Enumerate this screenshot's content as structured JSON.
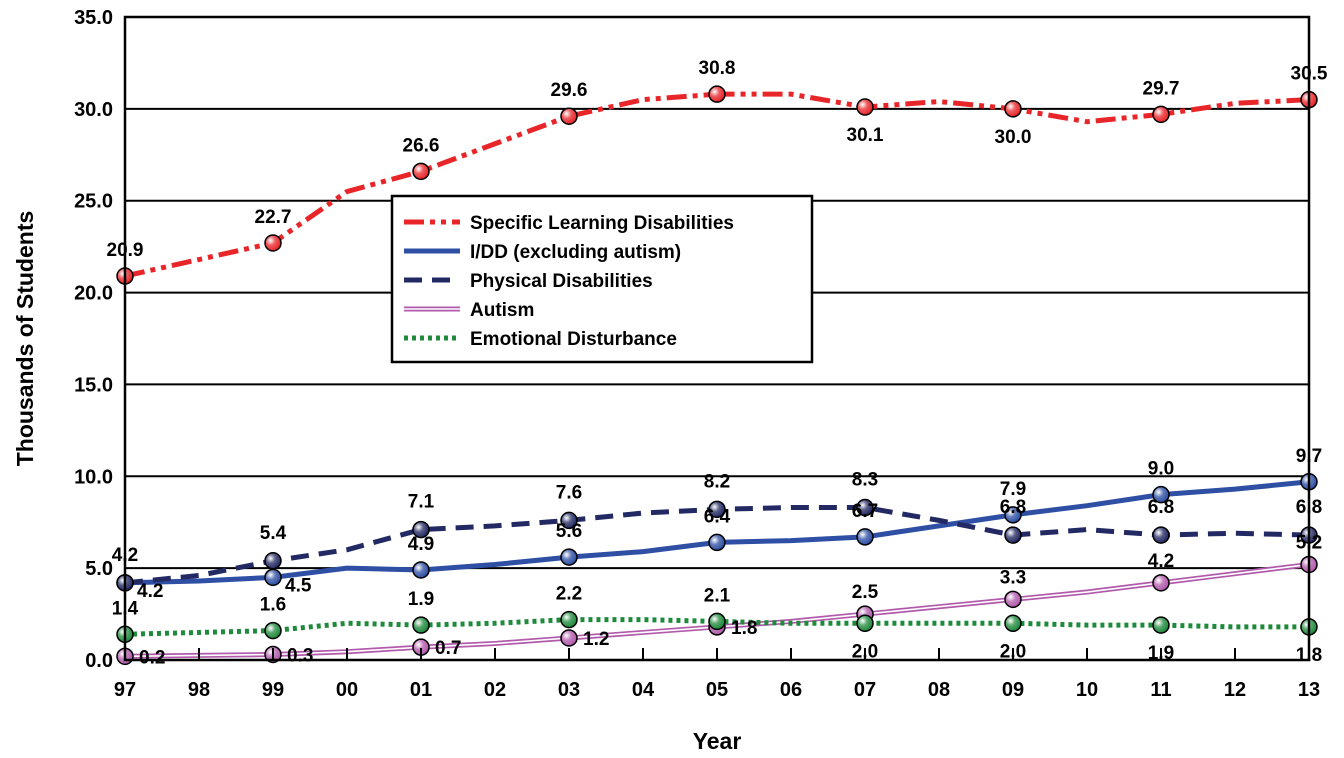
{
  "chart_data": {
    "type": "line",
    "xlabel": "Year",
    "ylabel": "Thousands of Students",
    "ylim": [
      0,
      35
    ],
    "yticks": [
      "0.0",
      "5.0",
      "10.0",
      "15.0",
      "20.0",
      "25.0",
      "30.0",
      "35.0"
    ],
    "categories": [
      "97",
      "98",
      "99",
      "00",
      "01",
      "02",
      "03",
      "04",
      "05",
      "06",
      "07",
      "08",
      "09",
      "10",
      "11",
      "12",
      "13"
    ],
    "grid": true,
    "legend_position": "center-left inside plot",
    "series": [
      {
        "name": "Specific Learning Disabilities",
        "color": "#e8262a",
        "style": "dash-dot-dot",
        "values": [
          20.9,
          21.8,
          22.7,
          25.5,
          26.6,
          28.1,
          29.6,
          30.5,
          30.8,
          30.8,
          30.1,
          30.4,
          30.0,
          29.3,
          29.7,
          30.3,
          30.5
        ],
        "labels": {
          "0": "20.9",
          "2": "22.7",
          "4": "26.6",
          "6": "29.6",
          "8": "30.8",
          "10": "30.1",
          "12": "30.0",
          "14": "29.7",
          "16": "30.5"
        }
      },
      {
        "name": "I/DD (excluding autism)",
        "color": "#2e4fa3",
        "style": "solid",
        "values": [
          4.2,
          4.3,
          4.5,
          5.0,
          4.9,
          5.2,
          5.6,
          5.9,
          6.4,
          6.5,
          6.7,
          7.3,
          7.9,
          8.4,
          9.0,
          9.3,
          9.7
        ],
        "labels": {
          "0": "4.2",
          "2": "4.5",
          "4": "4.9",
          "6": "5.6",
          "8": "6.4",
          "10": "6.7",
          "12": "7.9",
          "14": "9.0",
          "16": "9.7"
        }
      },
      {
        "name": "Physical Disabilities",
        "color": "#232a63",
        "style": "dashed",
        "values": [
          4.2,
          4.6,
          5.4,
          6.0,
          7.1,
          7.3,
          7.6,
          8.0,
          8.2,
          8.3,
          8.3,
          7.6,
          6.8,
          7.1,
          6.8,
          6.9,
          6.8
        ],
        "labels": {
          "0": "4.2",
          "2": "5.4",
          "4": "7.1",
          "6": "7.6",
          "8": "8.2",
          "10": "8.3",
          "12": "6.8",
          "14": "6.8",
          "16": "6.8"
        }
      },
      {
        "name": "Autism",
        "color": "#b15aab",
        "style": "double",
        "values": [
          0.2,
          0.25,
          0.3,
          0.45,
          0.7,
          0.9,
          1.2,
          1.5,
          1.8,
          2.1,
          2.5,
          2.9,
          3.3,
          3.7,
          4.2,
          4.7,
          5.2
        ],
        "labels": {
          "0": "0.2",
          "2": "0.3",
          "4": "0.7",
          "6": "1.2",
          "8": "1.8",
          "10": "2.5",
          "12": "3.3",
          "14": "4.2",
          "16": "5.2"
        }
      },
      {
        "name": "Emotional Disturbance",
        "color": "#1f8a3c",
        "style": "dotted",
        "values": [
          1.4,
          1.5,
          1.6,
          2.0,
          1.9,
          2.0,
          2.2,
          2.2,
          2.1,
          2.0,
          2.0,
          2.0,
          2.0,
          1.9,
          1.9,
          1.8,
          1.8
        ],
        "labels": {
          "0": "1.4",
          "2": "1.6",
          "4": "1.9",
          "6": "2.2",
          "8": "2.1",
          "10": "2.0",
          "12": "2.0",
          "14": "1.9",
          "16": "1.8"
        }
      }
    ]
  }
}
